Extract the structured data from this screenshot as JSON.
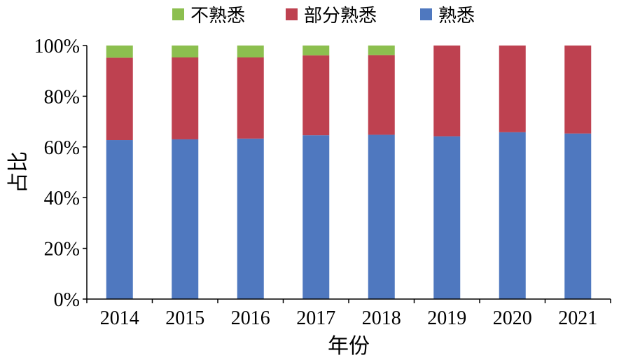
{
  "chart_data": {
    "type": "bar",
    "stacked": true,
    "title": "",
    "xlabel": "年份",
    "ylabel": "占比",
    "categories": [
      "2014",
      "2015",
      "2016",
      "2017",
      "2018",
      "2019",
      "2020",
      "2021"
    ],
    "yticks": [
      "0%",
      "20%",
      "40%",
      "60%",
      "80%",
      "100%"
    ],
    "ylim": [
      0,
      100
    ],
    "legend_position": "top",
    "grid": false,
    "series": [
      {
        "name": "熟悉",
        "color": "#4f78bf",
        "values": [
          62.7,
          63.0,
          63.3,
          64.6,
          64.8,
          64.2,
          65.8,
          65.3
        ]
      },
      {
        "name": "部分熟悉",
        "color": "#be4150",
        "values": [
          32.5,
          32.3,
          32.0,
          31.5,
          31.4,
          35.8,
          34.2,
          34.7
        ]
      },
      {
        "name": "不熟悉",
        "color": "#8cbf4f",
        "values": [
          4.8,
          4.7,
          4.7,
          3.9,
          3.8,
          0,
          0,
          0
        ]
      }
    ],
    "legend_order": [
      "不熟悉",
      "部分熟悉",
      "熟悉"
    ]
  }
}
